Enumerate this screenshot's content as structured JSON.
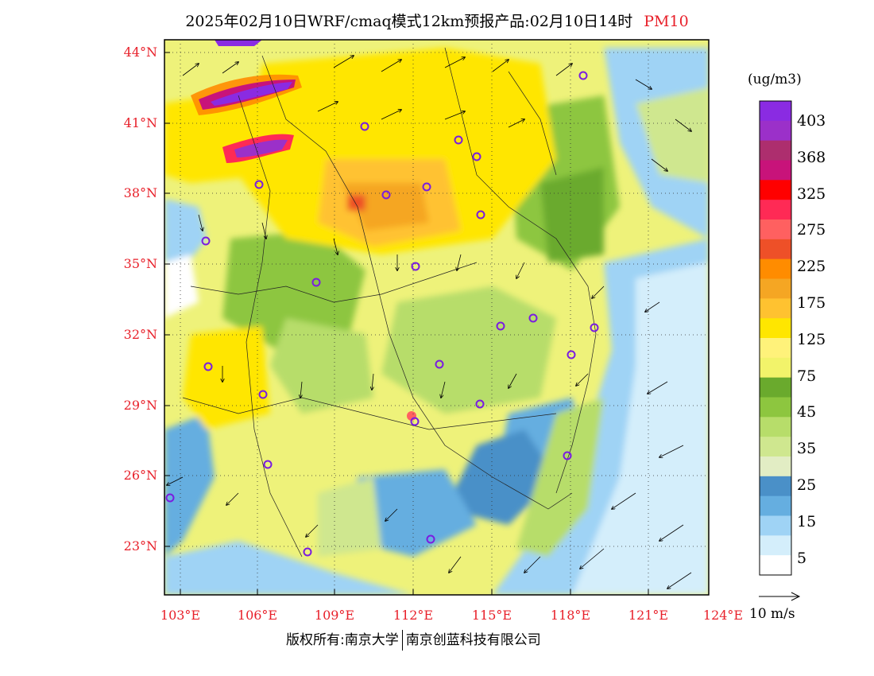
{
  "title": {
    "text": "2025年02月10日WRF/cmaq模式12km预报产品:02月10日14时",
    "pollutant": "PM10"
  },
  "axes": {
    "lat_labels": [
      "44°N",
      "41°N",
      "38°N",
      "35°N",
      "32°N",
      "29°N",
      "26°N",
      "23°N"
    ],
    "lon_labels": [
      "103°E",
      "106°E",
      "109°E",
      "112°E",
      "115°E",
      "118°E",
      "121°E",
      "124°E"
    ]
  },
  "colorbar": {
    "unit": "(ug/m3)",
    "labels": [
      "403",
      "368",
      "325",
      "275",
      "225",
      "175",
      "125",
      "75",
      "45",
      "35",
      "25",
      "15",
      "5"
    ],
    "colors": [
      "#8a2be2",
      "#9b30c9",
      "#ad2e6e",
      "#c8137a",
      "#ff0000",
      "#ff2a55",
      "#ff6060",
      "#ee5028",
      "#ff8c00",
      "#f5a623",
      "#ffc230",
      "#ffe600",
      "#fff27a",
      "#f2f36a",
      "#6aaa2d",
      "#8dc63f",
      "#b7dd6a",
      "#cfe78f",
      "#e2edc4",
      "#4a90c8",
      "#65aee0",
      "#9fd3f5",
      "#d4eefb",
      "#ffffff"
    ]
  },
  "wind_scale": {
    "label": "10 m/s"
  },
  "footer": {
    "left": "版权所有:南京大学",
    "right": "南京创蓝科技有限公司"
  }
}
